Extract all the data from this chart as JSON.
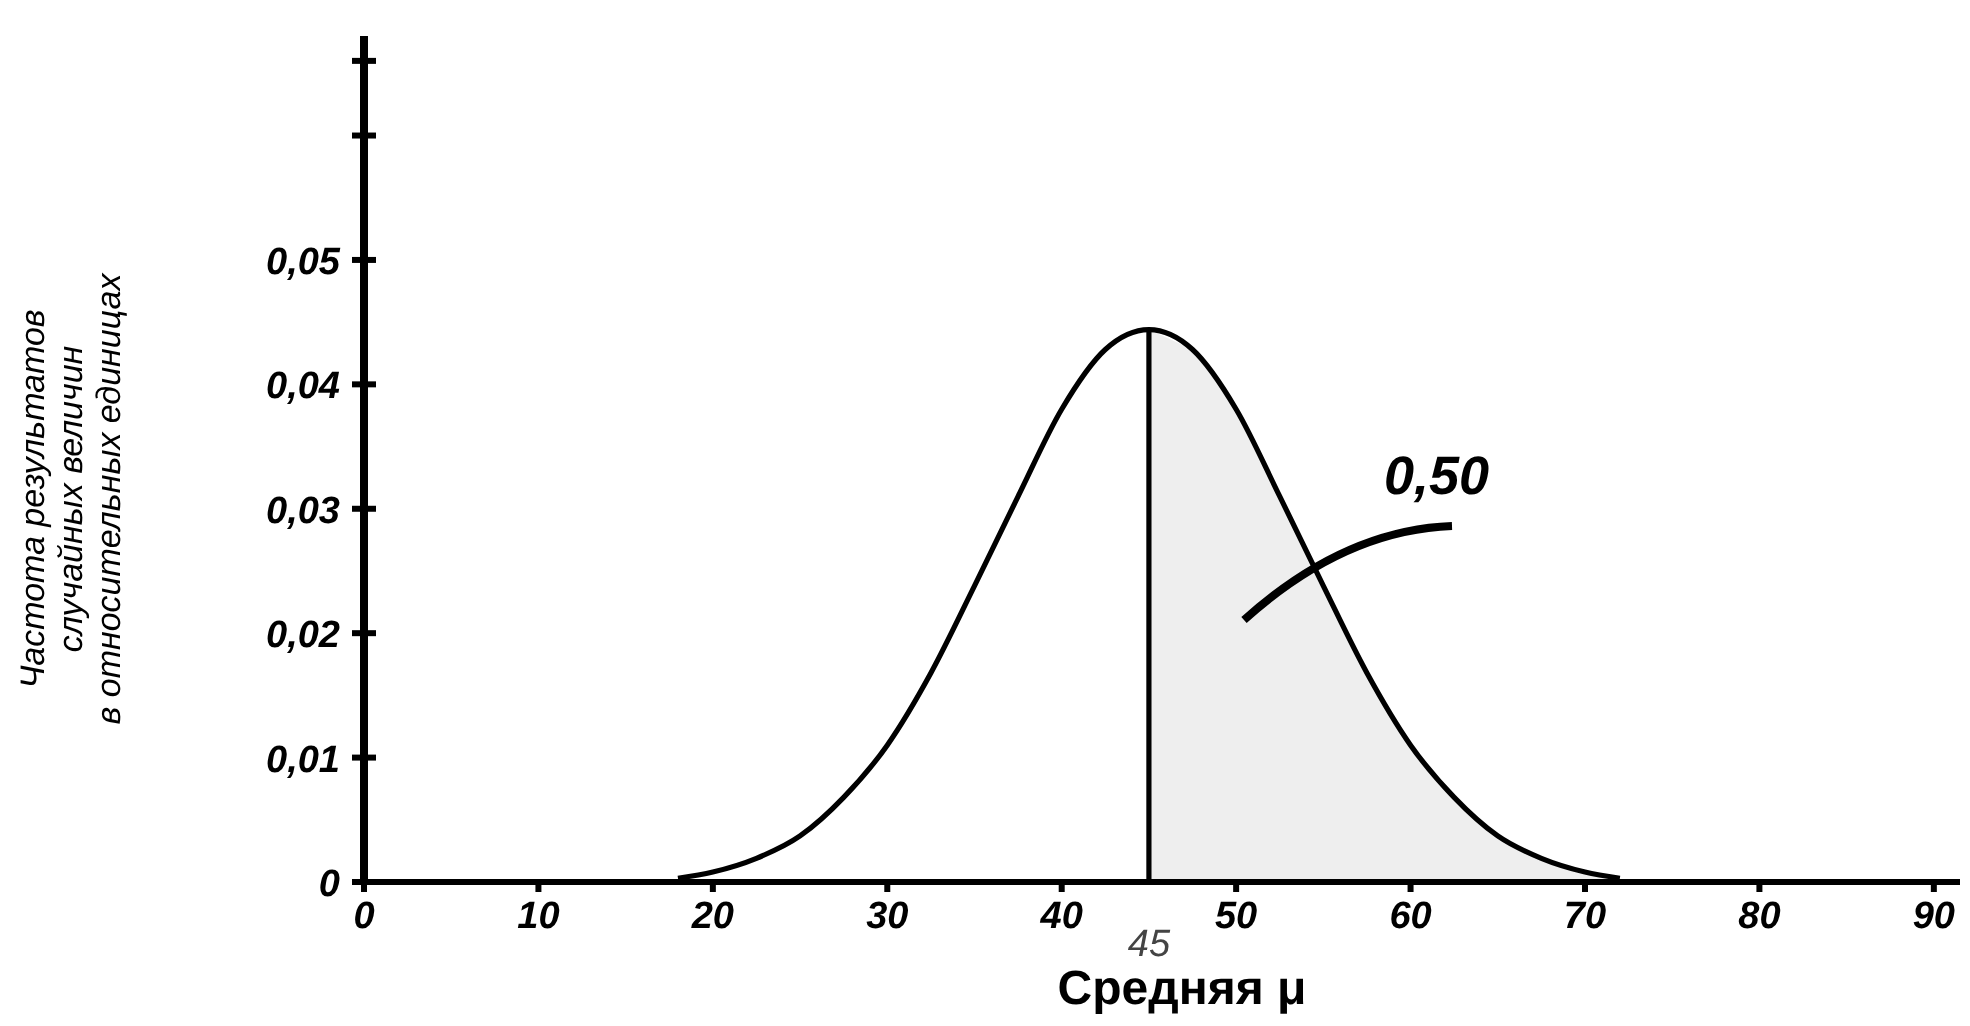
{
  "chart_data": {
    "type": "line",
    "xlabel": "Средняя μ",
    "ylabel": "Частота результатов\nслучайных величин\nв относительных единицах",
    "xlim": [
      0,
      91.5
    ],
    "ylim": [
      0,
      0.068
    ],
    "xticks": [
      0,
      10,
      20,
      30,
      40,
      50,
      60,
      70,
      80,
      90
    ],
    "yticks": [
      {
        "value": 0,
        "label": "0"
      },
      {
        "value": 0.01,
        "label": "0,01"
      },
      {
        "value": 0.02,
        "label": "0,02"
      },
      {
        "value": 0.03,
        "label": "0,03"
      },
      {
        "value": 0.04,
        "label": "0,04"
      },
      {
        "value": 0.05,
        "label": "0,05"
      },
      {
        "value": 0.06,
        "label": null
      },
      {
        "value": 0.066,
        "label": null
      }
    ],
    "series": [
      {
        "type": "area",
        "color": "#eeeeee",
        "x": [
          45,
          47.5,
          50,
          52.5,
          55,
          57.5,
          60,
          62.5,
          65,
          67.5,
          70,
          72
        ],
        "values": [
          0.0444,
          0.0428,
          0.038,
          0.031,
          0.0238,
          0.0168,
          0.011,
          0.0068,
          0.0037,
          0.0019,
          0.0008,
          0.0003
        ]
      },
      {
        "color": "#000000",
        "x": [
          18,
          20,
          22.5,
          25,
          27.5,
          30,
          32.5,
          35,
          37.5,
          40,
          42.5,
          45,
          47.5,
          50,
          52.5,
          55,
          57.5,
          60,
          62.5,
          65,
          67.5,
          70,
          72
        ],
        "values": [
          0.0003,
          0.0008,
          0.0019,
          0.0037,
          0.0068,
          0.011,
          0.0168,
          0.0238,
          0.031,
          0.038,
          0.0428,
          0.0444,
          0.0428,
          0.038,
          0.031,
          0.0238,
          0.0168,
          0.011,
          0.0068,
          0.0037,
          0.0019,
          0.0008,
          0.0003
        ]
      }
    ],
    "ref_lines": [
      {
        "axis": "x",
        "value": 45,
        "label": "45",
        "color": "#000000"
      }
    ],
    "annotations": [
      "0,50"
    ],
    "grid": false,
    "marker": "none",
    "line_style": "solid"
  }
}
